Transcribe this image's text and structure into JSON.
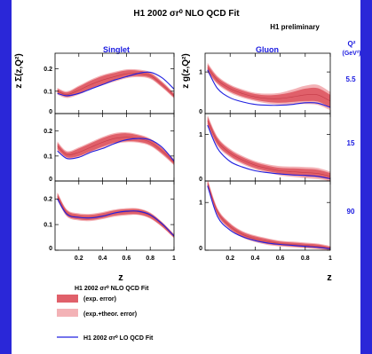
{
  "colors": {
    "frame": "#2a27d8",
    "exp_band": "#e0606a",
    "theo_band": "#f3b2b6",
    "lo_line": "#2020e0",
    "label_blue": "#1a1ae0",
    "axis": "#000000"
  },
  "chart_data": {
    "type": "line",
    "title": "H1 2002 σr⁰ NLO QCD Fit",
    "subtitle": "H1 preliminary",
    "xlabel": "z",
    "q2_header": "Q²",
    "q2_unit": "(GeV²)",
    "xlim": [
      0,
      1
    ],
    "x_ticks": [
      "0.2",
      "0.4",
      "0.6",
      "0.8",
      "1"
    ],
    "columns": [
      {
        "key": "singlet",
        "name": "Singlet",
        "ylabel": "z Σ(z,Q²)",
        "ylim": [
          0,
          0.27
        ],
        "y_ticks": [
          "0",
          "0.1",
          "0.2"
        ],
        "y_tick_values": [
          0,
          0.1,
          0.2
        ]
      },
      {
        "key": "gluon",
        "name": "Gluon",
        "ylabel": "z g(z,Q²)",
        "ylim": [
          0,
          1.45
        ],
        "y_ticks": [
          "0",
          "1"
        ],
        "y_tick_values": [
          0,
          1
        ]
      }
    ],
    "rows": [
      {
        "q2": "5.5",
        "singlet": {
          "x": [
            0.02,
            0.1,
            0.2,
            0.3,
            0.4,
            0.5,
            0.6,
            0.7,
            0.8,
            0.9,
            1.0
          ],
          "nlo": [
            0.1,
            0.085,
            0.105,
            0.13,
            0.15,
            0.165,
            0.178,
            0.18,
            0.17,
            0.13,
            0.08
          ],
          "exp_err": [
            0.01,
            0.01,
            0.015,
            0.017,
            0.018,
            0.017,
            0.015,
            0.012,
            0.01,
            0.01,
            0.008
          ],
          "theo_err": [
            0.015,
            0.015,
            0.02,
            0.022,
            0.023,
            0.022,
            0.02,
            0.017,
            0.015,
            0.014,
            0.012
          ],
          "lo": [
            0.09,
            0.08,
            0.09,
            0.11,
            0.13,
            0.15,
            0.165,
            0.18,
            0.185,
            0.16,
            0.11
          ]
        },
        "gluon": {
          "x": [
            0.02,
            0.1,
            0.2,
            0.3,
            0.4,
            0.5,
            0.6,
            0.7,
            0.8,
            0.9,
            1.0
          ],
          "nlo": [
            1.1,
            0.8,
            0.6,
            0.48,
            0.4,
            0.36,
            0.36,
            0.4,
            0.45,
            0.45,
            0.3
          ],
          "exp_err": [
            0.08,
            0.07,
            0.07,
            0.07,
            0.07,
            0.08,
            0.1,
            0.12,
            0.15,
            0.16,
            0.15
          ],
          "theo_err": [
            0.12,
            0.1,
            0.1,
            0.1,
            0.1,
            0.12,
            0.14,
            0.18,
            0.22,
            0.24,
            0.22
          ],
          "lo": [
            1.05,
            0.6,
            0.38,
            0.28,
            0.22,
            0.2,
            0.2,
            0.22,
            0.26,
            0.25,
            0.15
          ]
        }
      },
      {
        "q2": "15",
        "singlet": {
          "x": [
            0.02,
            0.1,
            0.2,
            0.3,
            0.4,
            0.5,
            0.6,
            0.7,
            0.8,
            0.9,
            1.0
          ],
          "nlo": [
            0.14,
            0.105,
            0.115,
            0.135,
            0.155,
            0.17,
            0.175,
            0.17,
            0.155,
            0.12,
            0.075
          ],
          "exp_err": [
            0.012,
            0.01,
            0.015,
            0.016,
            0.017,
            0.017,
            0.016,
            0.013,
            0.011,
            0.01,
            0.008
          ],
          "theo_err": [
            0.018,
            0.015,
            0.02,
            0.021,
            0.022,
            0.022,
            0.02,
            0.017,
            0.015,
            0.014,
            0.012
          ],
          "lo": [
            0.12,
            0.09,
            0.095,
            0.115,
            0.13,
            0.15,
            0.165,
            0.17,
            0.165,
            0.135,
            0.08
          ]
        },
        "gluon": {
          "x": [
            0.02,
            0.1,
            0.2,
            0.3,
            0.4,
            0.5,
            0.6,
            0.7,
            0.8,
            0.9,
            1.0
          ],
          "nlo": [
            1.3,
            0.85,
            0.6,
            0.45,
            0.34,
            0.27,
            0.22,
            0.2,
            0.18,
            0.16,
            0.1
          ],
          "exp_err": [
            0.08,
            0.07,
            0.06,
            0.06,
            0.06,
            0.06,
            0.06,
            0.07,
            0.08,
            0.08,
            0.07
          ],
          "theo_err": [
            0.12,
            0.1,
            0.09,
            0.09,
            0.09,
            0.09,
            0.1,
            0.11,
            0.12,
            0.12,
            0.1
          ],
          "lo": [
            1.2,
            0.7,
            0.42,
            0.3,
            0.22,
            0.18,
            0.15,
            0.13,
            0.12,
            0.1,
            0.05
          ]
        }
      },
      {
        "q2": "90",
        "singlet": {
          "x": [
            0.02,
            0.1,
            0.2,
            0.3,
            0.4,
            0.5,
            0.6,
            0.7,
            0.8,
            0.9,
            1.0
          ],
          "nlo": [
            0.21,
            0.145,
            0.13,
            0.128,
            0.135,
            0.145,
            0.15,
            0.15,
            0.135,
            0.1,
            0.055
          ],
          "exp_err": [
            0.012,
            0.01,
            0.01,
            0.01,
            0.01,
            0.01,
            0.01,
            0.01,
            0.009,
            0.008,
            0.006
          ],
          "theo_err": [
            0.016,
            0.014,
            0.014,
            0.014,
            0.014,
            0.014,
            0.014,
            0.013,
            0.012,
            0.01,
            0.008
          ],
          "lo": [
            0.2,
            0.14,
            0.128,
            0.126,
            0.133,
            0.145,
            0.152,
            0.152,
            0.138,
            0.103,
            0.055
          ]
        },
        "gluon": {
          "x": [
            0.02,
            0.1,
            0.2,
            0.3,
            0.4,
            0.5,
            0.6,
            0.7,
            0.8,
            0.9,
            1.0
          ],
          "nlo": [
            1.4,
            0.8,
            0.5,
            0.33,
            0.24,
            0.18,
            0.14,
            0.12,
            0.1,
            0.08,
            0.04
          ],
          "exp_err": [
            0.06,
            0.05,
            0.05,
            0.05,
            0.05,
            0.05,
            0.04,
            0.04,
            0.04,
            0.04,
            0.03
          ],
          "theo_err": [
            0.09,
            0.08,
            0.07,
            0.07,
            0.07,
            0.07,
            0.06,
            0.06,
            0.06,
            0.06,
            0.05
          ],
          "lo": [
            1.35,
            0.7,
            0.42,
            0.28,
            0.2,
            0.15,
            0.12,
            0.1,
            0.08,
            0.06,
            0.03
          ]
        }
      }
    ],
    "legend": {
      "heading": "H1 2002 σr⁰ NLO QCD Fit",
      "exp": "(exp. error)",
      "theo": "(exp.+theor. error)",
      "lo": "H1 2002 σr⁰ LO QCD Fit"
    }
  }
}
